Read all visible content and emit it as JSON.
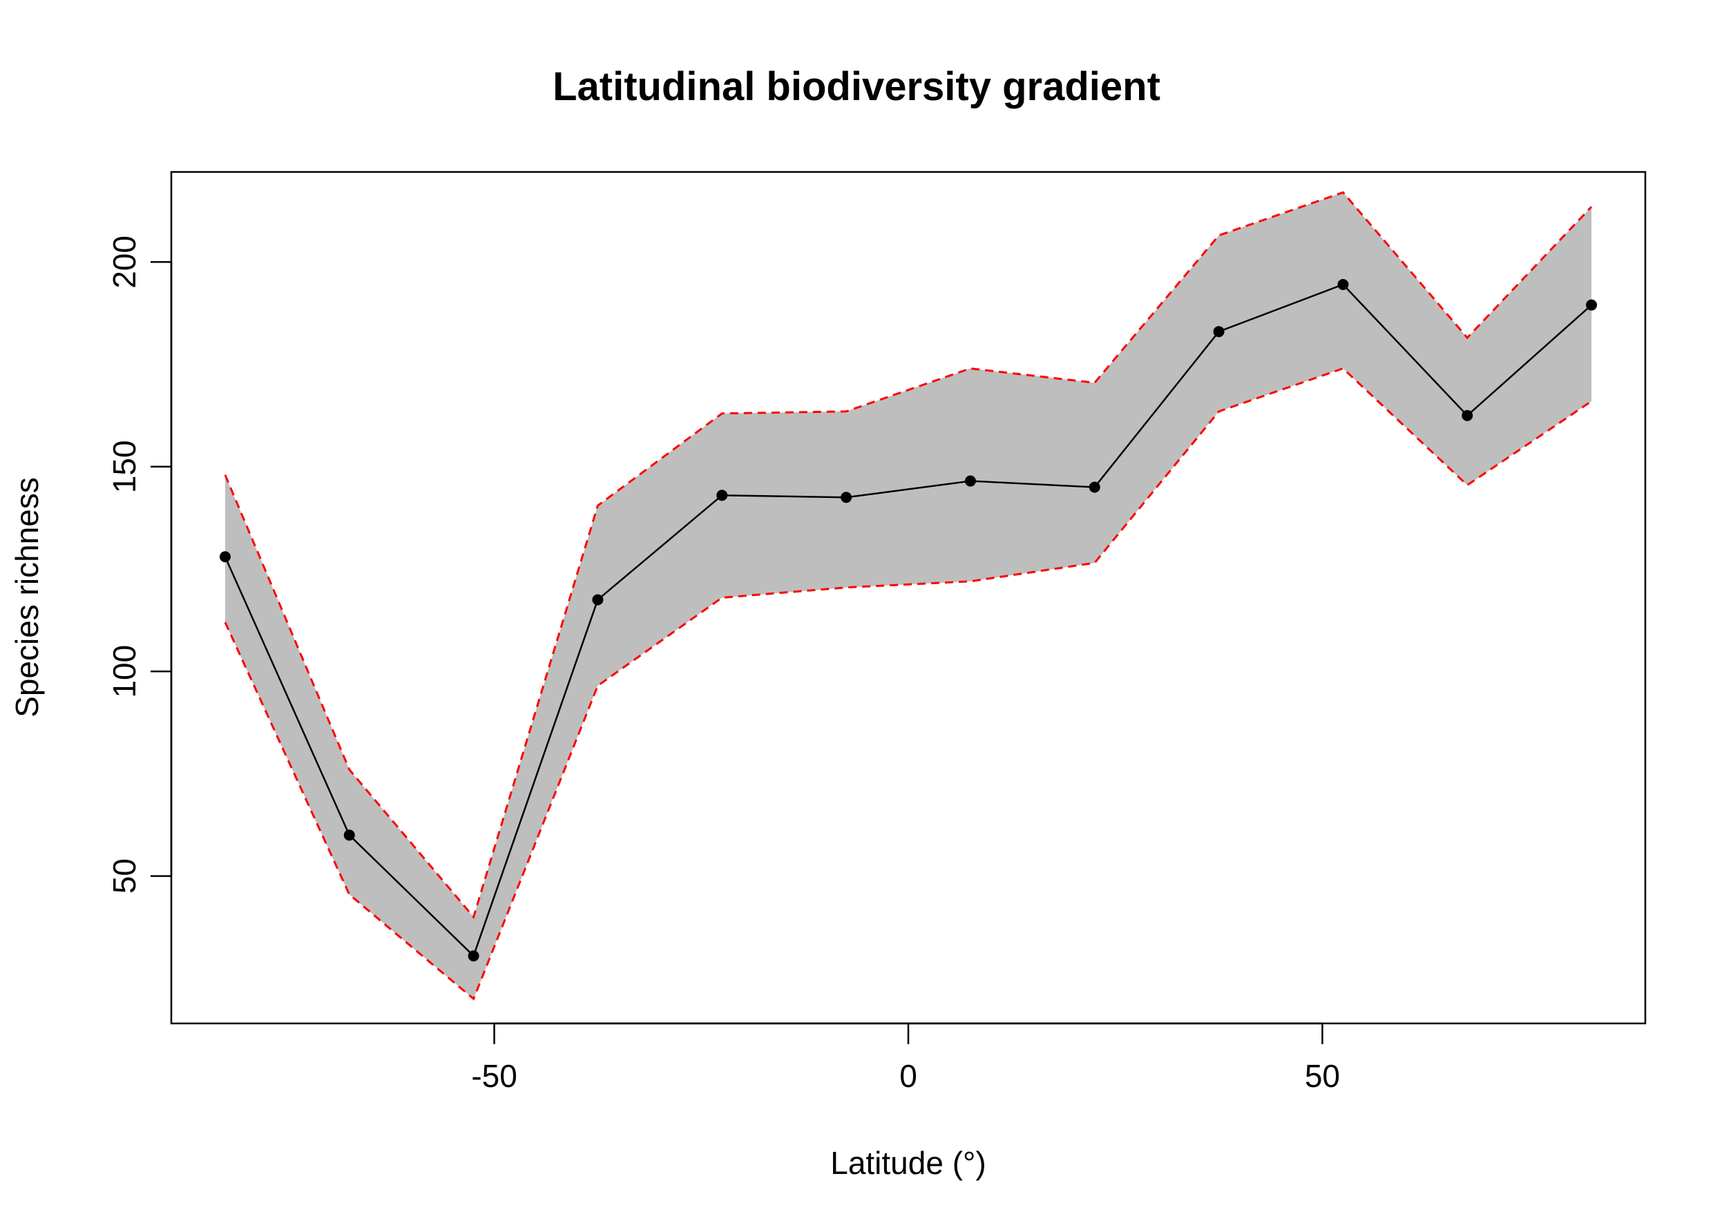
{
  "chart_data": {
    "type": "line",
    "title": "Latitudinal biodiversity gradient",
    "xlabel": "Latitude (°)",
    "ylabel": "Species richness",
    "xlim": [
      -89,
      89
    ],
    "ylim": [
      14,
      222
    ],
    "x_ticks": [
      {
        "value": -50,
        "label": "-50"
      },
      {
        "value": 0,
        "label": "0"
      },
      {
        "value": 50,
        "label": "50"
      }
    ],
    "y_ticks": [
      {
        "value": 50,
        "label": "50"
      },
      {
        "value": 100,
        "label": "100"
      },
      {
        "value": 150,
        "label": "150"
      },
      {
        "value": 200,
        "label": "200"
      }
    ],
    "grid": false,
    "legend": "none",
    "colors": {
      "line": "#000000",
      "points": "#000000",
      "band_fill": "#bebebe",
      "bound_lines": "#ff0000"
    },
    "series": [
      {
        "x": [
          -82.5,
          -67.5,
          -52.5,
          -37.5,
          -22.5,
          -7.5,
          7.5,
          22.5,
          37.5,
          52.5,
          67.5,
          82.5
        ],
        "mean": [
          128,
          60,
          30.5,
          117.5,
          143,
          142.5,
          146.5,
          145,
          183,
          194.5,
          162.5,
          189.5
        ],
        "upper": [
          148,
          76,
          40,
          140.5,
          163,
          163.5,
          174,
          170.5,
          206.5,
          217,
          181.5,
          213.5
        ],
        "lower": [
          112,
          45.5,
          20,
          96.5,
          118,
          120.5,
          122,
          126.5,
          163.5,
          174,
          145.5,
          166
        ]
      }
    ]
  }
}
